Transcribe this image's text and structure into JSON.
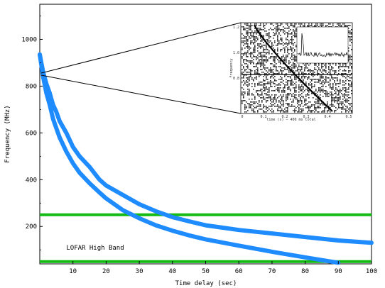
{
  "chart_data": {
    "type": "line",
    "xlabel": "Time delay (sec)",
    "ylabel": "Frequency (MHz)",
    "xlim": [
      0,
      100
    ],
    "ylim": [
      40,
      1150
    ],
    "xticks": [
      10,
      20,
      30,
      40,
      50,
      60,
      70,
      80,
      90,
      100
    ],
    "yticks": [
      200,
      400,
      600,
      800,
      1000
    ],
    "grid": false,
    "series": [
      {
        "color": "#1e8cff",
        "x": [
          0,
          1,
          2,
          3,
          4,
          5,
          6,
          8,
          10,
          12,
          15,
          18,
          20,
          25,
          30,
          35,
          40,
          45,
          50,
          55,
          60,
          70,
          80,
          90,
          100
        ],
        "y": [
          935,
          860,
          810,
          770,
          720,
          690,
          650,
          600,
          540,
          500,
          455,
          400,
          375,
          335,
          295,
          265,
          240,
          222,
          205,
          195,
          185,
          170,
          155,
          140,
          130
        ]
      },
      {
        "color": "#1e8cff",
        "x": [
          0,
          1,
          2,
          3,
          4,
          5,
          6,
          8,
          10,
          12,
          15,
          18,
          20,
          25,
          30,
          35,
          40,
          45,
          50,
          60,
          70,
          80,
          90
        ],
        "y": [
          935,
          840,
          770,
          720,
          660,
          620,
          580,
          520,
          470,
          430,
          385,
          345,
          320,
          270,
          235,
          205,
          182,
          162,
          145,
          118,
          92,
          68,
          45
        ]
      }
    ],
    "hlines": [
      {
        "y": 50,
        "color": "#11bb11"
      },
      {
        "y": 250,
        "color": "#11bb11"
      }
    ],
    "annotations": [
      {
        "text": "LOFAR High Band",
        "x": 8,
        "y": 100
      }
    ],
    "inset": {
      "xticks": [
        "0",
        "0.1",
        "0.2",
        "0.3",
        "0.4",
        "0.5"
      ],
      "yticks": [
        "1.2",
        "1.0",
        "0.8"
      ],
      "xlabel": "time (s) — 400 ms total",
      "ylabel": "frequency"
    }
  }
}
